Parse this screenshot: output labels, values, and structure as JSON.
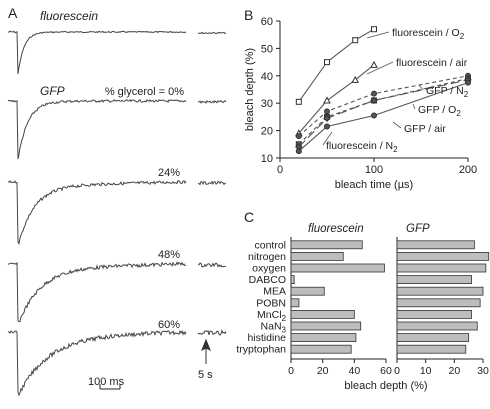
{
  "panel_labels": {
    "a": "A",
    "b": "B",
    "c": "C"
  },
  "panel_a": {
    "traces": [
      {
        "label": "fluorescein",
        "glycerol": ""
      },
      {
        "label": "GFP",
        "glycerol": "% glycerol = 0%"
      },
      {
        "label": "",
        "glycerol": "24%"
      },
      {
        "label": "",
        "glycerol": "48%"
      },
      {
        "label": "",
        "glycerol": "60%"
      }
    ],
    "scale_bar_label": "100 ms",
    "gap_label": "5 s"
  },
  "chart_data": [
    {
      "type": "line",
      "title": "",
      "xlabel": "bleach time (µs)",
      "ylabel": "bleach depth (%)",
      "xlim": [
        0,
        200
      ],
      "ylim": [
        10,
        60
      ],
      "x_ticks": [
        0,
        100,
        200
      ],
      "y_ticks": [
        10,
        20,
        30,
        40,
        50,
        60
      ],
      "grid": false,
      "series": [
        {
          "name": "fluorescein / O2",
          "name_base": "fluorescein / O",
          "name_sub": "2",
          "style": "solid",
          "marker": "square",
          "x": [
            20,
            50,
            80,
            100
          ],
          "y": [
            30.5,
            45,
            53,
            57
          ]
        },
        {
          "name": "fluorescein / air",
          "name_base": "fluorescein / air",
          "name_sub": "",
          "style": "solid",
          "marker": "triangle",
          "x": [
            20,
            50,
            80,
            100
          ],
          "y": [
            19,
            31,
            38.5,
            44
          ]
        },
        {
          "name": "GFP / N2",
          "name_base": "GFP / N",
          "name_sub": "2",
          "style": "dashed",
          "marker": "circle",
          "x": [
            20,
            50,
            100,
            200
          ],
          "y": [
            18,
            27,
            33.5,
            40
          ]
        },
        {
          "name": "GFP / O2",
          "name_base": "GFP / O",
          "name_sub": "2",
          "style": "dashed",
          "marker": "square",
          "x": [
            20,
            50,
            100,
            200
          ],
          "y": [
            15,
            25,
            31,
            39
          ]
        },
        {
          "name": "GFP / air",
          "name_base": "GFP / air",
          "name_sub": "",
          "style": "longdash",
          "marker": "diamond",
          "x": [
            20,
            50,
            100,
            200
          ],
          "y": [
            14,
            24.5,
            31,
            38.5
          ]
        },
        {
          "name": "fluorescein / N2",
          "name_base": "fluorescein / N",
          "name_sub": "2",
          "style": "solid",
          "marker": "circle",
          "x": [
            20,
            50,
            100,
            200
          ],
          "y": [
            12.5,
            21.5,
            25.5,
            37.5
          ]
        }
      ]
    },
    {
      "type": "bar",
      "title": "fluorescein",
      "xlabel": "bleach depth (%)",
      "xlim": [
        0,
        60
      ],
      "x_ticks": [
        0,
        20,
        40,
        60
      ],
      "categories": [
        "control",
        "nitrogen",
        "oxygen",
        "DABCO",
        "MEA",
        "POBN",
        "MnCl2",
        "NaN3",
        "histidine",
        "tryptophan"
      ],
      "values": [
        45,
        33,
        59,
        2,
        21,
        5,
        40,
        44,
        41,
        38
      ]
    },
    {
      "type": "bar",
      "title": "GFP",
      "xlabel": "bleach depth (%)",
      "xlim": [
        0,
        30
      ],
      "x_ticks": [
        0,
        10,
        20,
        30
      ],
      "categories": [
        "control",
        "nitrogen",
        "oxygen",
        "DABCO",
        "MEA",
        "POBN",
        "MnCl2",
        "NaN3",
        "histidine",
        "tryptophan"
      ],
      "values": [
        27,
        32,
        31,
        26,
        30,
        29,
        26,
        28,
        25,
        24
      ]
    }
  ],
  "panel_c": {
    "category_labels": [
      {
        "base": "control",
        "sub": ""
      },
      {
        "base": "nitrogen",
        "sub": ""
      },
      {
        "base": "oxygen",
        "sub": ""
      },
      {
        "base": "DABCO",
        "sub": ""
      },
      {
        "base": "MEA",
        "sub": ""
      },
      {
        "base": "POBN",
        "sub": ""
      },
      {
        "base": "MnCl",
        "sub": "2"
      },
      {
        "base": "NaN",
        "sub": "3"
      },
      {
        "base": "histidine",
        "sub": ""
      },
      {
        "base": "tryptophan",
        "sub": ""
      }
    ]
  },
  "colors": {
    "ink": "#222222",
    "bar_fill": "#bdbdbd",
    "trace": "#444444"
  }
}
